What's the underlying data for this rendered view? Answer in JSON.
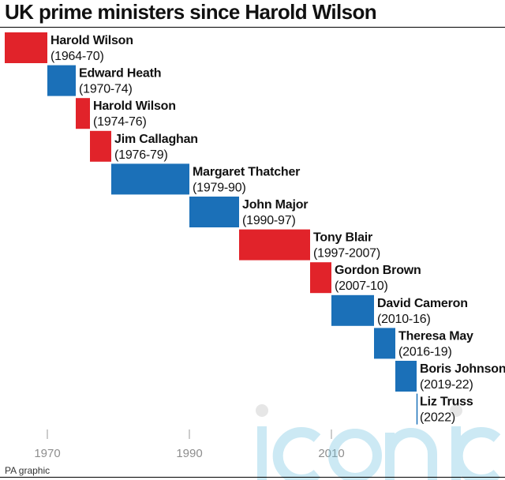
{
  "chart_data": {
    "type": "timeline",
    "title": "UK prime ministers since Harold Wilson",
    "x_ticks": [
      1970,
      1990,
      2010
    ],
    "xlim": [
      1964,
      2029
    ],
    "party_colors": {
      "Labour": "#e1232a",
      "Conservative": "#1b70b8"
    },
    "terms": [
      {
        "name": "Harold Wilson",
        "years": "(1964-70)",
        "start": 1964,
        "end": 1970,
        "party": "Labour"
      },
      {
        "name": "Edward Heath",
        "years": "(1970-74)",
        "start": 1970,
        "end": 1974,
        "party": "Conservative"
      },
      {
        "name": "Harold Wilson",
        "years": "(1974-76)",
        "start": 1974,
        "end": 1976,
        "party": "Labour"
      },
      {
        "name": "Jim Callaghan",
        "years": "(1976-79)",
        "start": 1976,
        "end": 1979,
        "party": "Labour"
      },
      {
        "name": "Margaret Thatcher",
        "years": "(1979-90)",
        "start": 1979,
        "end": 1990,
        "party": "Conservative"
      },
      {
        "name": "John Major",
        "years": "(1990-97)",
        "start": 1990,
        "end": 1997,
        "party": "Conservative"
      },
      {
        "name": "Tony Blair",
        "years": "(1997-2007)",
        "start": 1997,
        "end": 2007,
        "party": "Labour"
      },
      {
        "name": "Gordon Brown",
        "years": "(2007-10)",
        "start": 2007,
        "end": 2010,
        "party": "Labour"
      },
      {
        "name": "David Cameron",
        "years": "(2010-16)",
        "start": 2010,
        "end": 2016,
        "party": "Conservative"
      },
      {
        "name": "Theresa May",
        "years": "(2016-19)",
        "start": 2016,
        "end": 2019,
        "party": "Conservative"
      },
      {
        "name": "Boris Johnson",
        "years": "(2019-22)",
        "start": 2019,
        "end": 2022,
        "party": "Conservative"
      },
      {
        "name": "Liz Truss",
        "years": "(2022)",
        "start": 2022,
        "end": 2022.1,
        "party": "Conservative"
      }
    ]
  },
  "source": "PA graphic",
  "watermark_text": "iconic"
}
